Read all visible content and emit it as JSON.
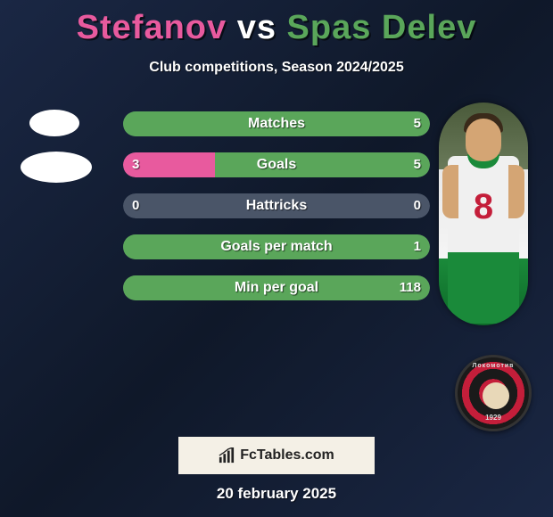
{
  "title": {
    "player1": "Stefanov",
    "vs": "vs",
    "player2": "Spas Delev",
    "player1_color": "#e85a9e",
    "vs_color": "#ffffff",
    "player2_color": "#5aa65a"
  },
  "subtitle": "Club competitions, Season 2024/2025",
  "player_right_jersey_number": "8",
  "chart": {
    "bar_bg_color": "#4a5568",
    "left_color": "#e85a9e",
    "right_color": "#5aa65a",
    "text_color": "#ffffff",
    "rows": [
      {
        "label": "Matches",
        "left_value": "",
        "right_value": "5",
        "right_fill_pct": 100
      },
      {
        "label": "Goals",
        "left_value": "3",
        "right_value": "5",
        "left_fill_pct": 30,
        "right_fill_pct": 70
      },
      {
        "label": "Hattricks",
        "left_value": "0",
        "right_value": "0"
      },
      {
        "label": "Goals per match",
        "left_value": "",
        "right_value": "1",
        "right_fill_pct": 100
      },
      {
        "label": "Min per goal",
        "left_value": "",
        "right_value": "118",
        "right_fill_pct": 100
      }
    ]
  },
  "badge": {
    "top_text": "Локомотив",
    "bottom_text": "1929"
  },
  "watermark": "FcTables.com",
  "date": "20 february 2025"
}
